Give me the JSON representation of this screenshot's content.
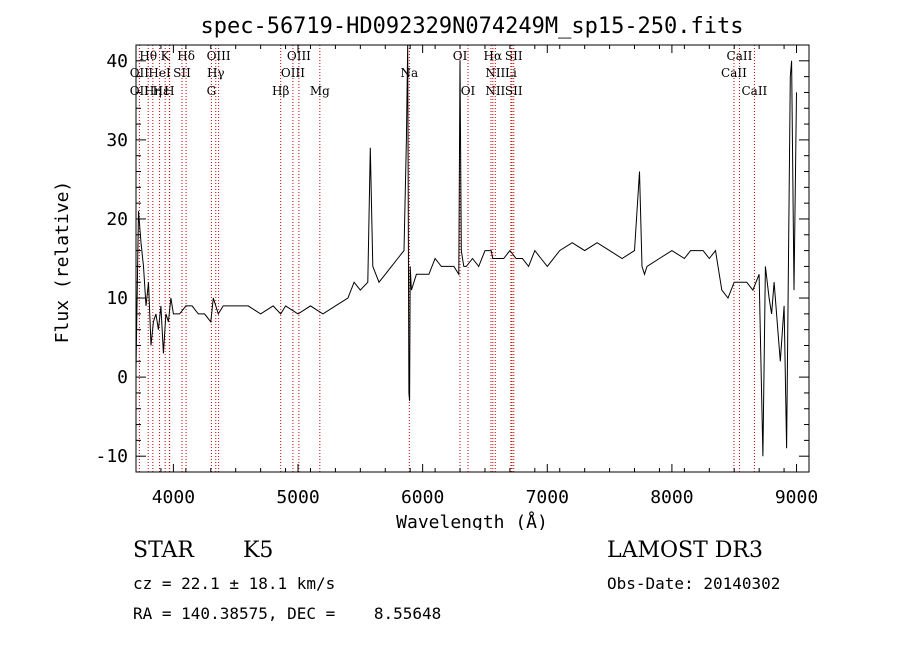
{
  "chart_data": {
    "type": "line",
    "title": "spec-56719-HD092329N074249M_sp15-250.fits",
    "xlabel": "Wavelength (Å)",
    "ylabel": "Flux (relative)",
    "xlim": [
      3700,
      9100
    ],
    "ylim": [
      -12,
      42
    ],
    "xticks": [
      4000,
      5000,
      6000,
      7000,
      8000,
      9000
    ],
    "yticks": [
      -10,
      0,
      10,
      20,
      30,
      40
    ],
    "grid": false,
    "series": [
      {
        "x": [
          3700,
          3720,
          3740,
          3760,
          3780,
          3800,
          3820,
          3840,
          3860,
          3880,
          3900,
          3920,
          3940,
          3960,
          3980,
          4000,
          4050,
          4100,
          4150,
          4200,
          4250,
          4300,
          4320,
          4340,
          4360,
          4400,
          4450,
          4500,
          4600,
          4700,
          4800,
          4861,
          4900,
          5000,
          5100,
          5200,
          5300,
          5400,
          5450,
          5500,
          5560,
          5580,
          5600,
          5650,
          5700,
          5750,
          5800,
          5850,
          5870,
          5880,
          5890,
          5895,
          5900,
          5910,
          5950,
          6000,
          6050,
          6100,
          6150,
          6200,
          6250,
          6290,
          6300,
          6310,
          6330,
          6350,
          6400,
          6450,
          6500,
          6550,
          6563,
          6600,
          6650,
          6700,
          6750,
          6800,
          6850,
          6900,
          6950,
          7000,
          7100,
          7200,
          7300,
          7400,
          7500,
          7600,
          7700,
          7740,
          7760,
          7780,
          7800,
          7900,
          8000,
          8100,
          8150,
          8200,
          8250,
          8300,
          8350,
          8400,
          8450,
          8500,
          8550,
          8600,
          8650,
          8700,
          8730,
          8750,
          8780,
          8800,
          8820,
          8850,
          8870,
          8900,
          8920,
          8950,
          8960,
          8980,
          9000
        ],
        "y": [
          1,
          21,
          17,
          14,
          9,
          12,
          4,
          7,
          8,
          6,
          9,
          3,
          8,
          7,
          10,
          8,
          8,
          9,
          9,
          8,
          8,
          7,
          10,
          9,
          8,
          9,
          9,
          9,
          9,
          8,
          9,
          8,
          9,
          8,
          9,
          8,
          9,
          10,
          12,
          11,
          12,
          29,
          14,
          12,
          13,
          14,
          15,
          16,
          30,
          42,
          -2,
          -3,
          14,
          11,
          13,
          13,
          13,
          15,
          14,
          14,
          14,
          13,
          40,
          16,
          14,
          14,
          15,
          14,
          16,
          16,
          15,
          15,
          15,
          16,
          15,
          15,
          14,
          16,
          15,
          14,
          16,
          17,
          16,
          17,
          16,
          15,
          16,
          26,
          14,
          13,
          14,
          15,
          16,
          15,
          16,
          16,
          16,
          15,
          16,
          11,
          10,
          12,
          12,
          12,
          11,
          13,
          -10,
          14,
          10,
          8,
          12,
          6,
          2,
          9,
          -9,
          38,
          40,
          11,
          36
        ],
        "annotations": []
      }
    ],
    "lines": [
      {
        "label": "Hα",
        "x": 6563
      },
      {
        "label": "Hβ",
        "x": 4861
      },
      {
        "label": "Hγ",
        "x": 4340
      },
      {
        "label": "Hδ",
        "x": 4102
      },
      {
        "label": "Hε",
        "x": 3970
      },
      {
        "label": "Hθ",
        "x": 3798
      },
      {
        "label": "Hη",
        "x": 3835
      },
      {
        "label": "K",
        "x": 3934
      },
      {
        "label": "H",
        "x": 3968
      },
      {
        "label": "G",
        "x": 4305
      },
      {
        "label": "Mg",
        "x": 5175
      },
      {
        "label": "Na",
        "x": 5893
      },
      {
        "label": "OI",
        "x": 6300
      },
      {
        "label": "OI",
        "x": 6364
      },
      {
        "label": "OII",
        "x": 3727
      },
      {
        "label": "OIII",
        "x": 4363
      },
      {
        "label": "OIII",
        "x": 4959
      },
      {
        "label": "OIII",
        "x": 5007
      },
      {
        "label": "HeI",
        "x": 3889
      },
      {
        "label": "SII",
        "x": 4069
      },
      {
        "label": "NII",
        "x": 6548
      },
      {
        "label": "NII",
        "x": 6583
      },
      {
        "label": "Li",
        "x": 6708
      },
      {
        "label": "SII",
        "x": 6717
      },
      {
        "label": "SII",
        "x": 6731
      },
      {
        "label": "CaII",
        "x": 8498
      },
      {
        "label": "CaII",
        "x": 8542
      },
      {
        "label": "CaII",
        "x": 8662
      }
    ],
    "line_labels": [
      {
        "label": "Hθ",
        "x": 3798,
        "row": 0
      },
      {
        "label": "OII",
        "x": 3727,
        "row": 1
      },
      {
        "label": "OII",
        "x": 3727,
        "row": 2
      },
      {
        "label": "K",
        "x": 3934,
        "row": 0
      },
      {
        "label": "Hδ",
        "x": 4102,
        "row": 0
      },
      {
        "label": "HeI",
        "x": 3889,
        "row": 1
      },
      {
        "label": "SII",
        "x": 4069,
        "row": 1
      },
      {
        "label": "Hε",
        "x": 3900,
        "row": 2
      },
      {
        "label": "H",
        "x": 3968,
        "row": 2
      },
      {
        "label": "Hη",
        "x": 3835,
        "row": 2
      },
      {
        "label": "OIII",
        "x": 4363,
        "row": 0
      },
      {
        "label": "Hγ",
        "x": 4340,
        "row": 1
      },
      {
        "label": "G",
        "x": 4305,
        "row": 2
      },
      {
        "label": "OIII",
        "x": 5007,
        "row": 0
      },
      {
        "label": "OIII",
        "x": 4959,
        "row": 1
      },
      {
        "label": "Hβ",
        "x": 4861,
        "row": 2
      },
      {
        "label": "Mg",
        "x": 5175,
        "row": 2
      },
      {
        "label": "Na",
        "x": 5893,
        "row": 1
      },
      {
        "label": "OI",
        "x": 6300,
        "row": 0
      },
      {
        "label": "OI",
        "x": 6364,
        "row": 2
      },
      {
        "label": "Hα",
        "x": 6563,
        "row": 0
      },
      {
        "label": "SII",
        "x": 6731,
        "row": 0
      },
      {
        "label": "NII",
        "x": 6583,
        "row": 1
      },
      {
        "label": "Li",
        "x": 6708,
        "row": 1
      },
      {
        "label": "NII",
        "x": 6583,
        "row": 2
      },
      {
        "label": "SII",
        "x": 6731,
        "row": 2
      },
      {
        "label": "CaII",
        "x": 8542,
        "row": 0
      },
      {
        "label": "CaII",
        "x": 8498,
        "row": 1
      },
      {
        "label": "CaII",
        "x": 8662,
        "row": 2
      }
    ],
    "colors": {
      "spectrum": "#000000",
      "lines": "#cc0000",
      "axes": "#000000"
    }
  },
  "info": {
    "object_class": "STAR",
    "subclass": "K5",
    "survey": "LAMOST DR3",
    "cz": "cz = 22.1 ± 18.1 km/s",
    "obs_date": "Obs-Date: 20140302",
    "coords": "RA = 140.38575, DEC =    8.55648"
  }
}
